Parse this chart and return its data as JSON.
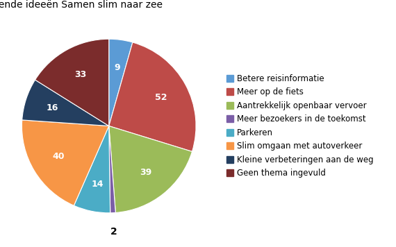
{
  "title": "Ingediende ideeën Samen slim naar zee",
  "labels": [
    "Betere reisinformatie",
    "Meer op de fiets",
    "Aantrekkelijk openbaar vervoer",
    "Meer bezoekers in de toekomst",
    "Parkeren",
    "Slim omgaan met autoverkeer",
    "Kleine verbeteringen aan de weg",
    "Geen thema ingevuld"
  ],
  "values": [
    9,
    52,
    39,
    2,
    14,
    40,
    16,
    33
  ],
  "colors": [
    "#5B9BD5",
    "#BE4B48",
    "#9BBB59",
    "#7B5EA7",
    "#4BACC6",
    "#F79646",
    "#243F60",
    "#7B2C2C"
  ],
  "startangle": 90,
  "title_fontsize": 10,
  "label_fontsize": 9,
  "legend_fontsize": 8.5
}
